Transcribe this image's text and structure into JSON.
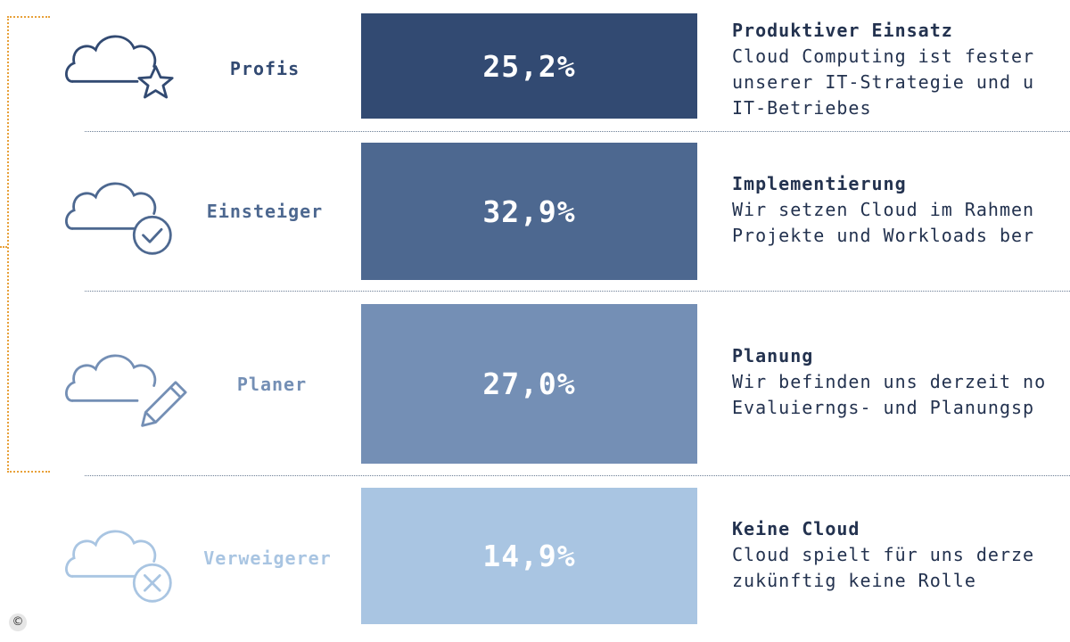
{
  "chart_data": {
    "type": "bar",
    "orientation": "horizontal",
    "categories": [
      "Profis",
      "Einsteiger",
      "Planer",
      "Verweigerer"
    ],
    "values": [
      25.2,
      32.9,
      27.0,
      14.9
    ],
    "value_labels": [
      "25,2%",
      "32,9%",
      "27,0%",
      "14,9%"
    ],
    "colors": [
      "#324a72",
      "#4d6890",
      "#748fb5",
      "#a9c5e2"
    ],
    "icons": [
      "cloud-star-icon",
      "cloud-check-icon",
      "cloud-pencil-icon",
      "cloud-cross-icon"
    ],
    "descriptions": [
      {
        "title": "Produktiver Einsatz",
        "lines": [
          "Cloud Computing ist fester",
          "unserer IT-Strategie und u",
          "IT-Betriebes"
        ]
      },
      {
        "title": "Implementierung",
        "lines": [
          "Wir setzen Cloud im Rahmen",
          "Projekte und Workloads ber"
        ]
      },
      {
        "title": "Planung",
        "lines": [
          "Wir befinden uns derzeit no",
          "Evaluierngs- und Planungsp"
        ]
      },
      {
        "title": "Keine Cloud",
        "lines": [
          "Cloud spielt für uns derze",
          "zukünftig keine Rolle"
        ]
      }
    ],
    "ylim": [
      0,
      100
    ],
    "grid": false
  },
  "footer": {
    "copyright_symbol": "©"
  }
}
